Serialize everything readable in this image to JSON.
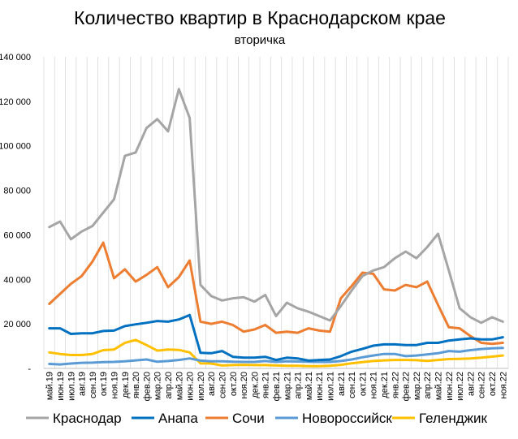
{
  "chart_data": {
    "type": "line",
    "title": "Количество квартир в Краснодарском крае",
    "subtitle": "вторичка",
    "xlabel": "",
    "ylabel": "",
    "ylim": [
      0,
      140000
    ],
    "yticks": [
      0,
      20000,
      40000,
      60000,
      80000,
      100000,
      120000,
      140000
    ],
    "ytick_labels": [
      "-",
      "20 000",
      "40 000",
      "60 000",
      "80 000",
      "100 000",
      "120 000",
      "140 000"
    ],
    "grid": "vertical",
    "legend_position": "bottom",
    "categories": [
      "май.19",
      "июн.19",
      "июл.19",
      "авг.19",
      "сен.19",
      "окт.19",
      "ноя.19",
      "дек.19",
      "янв.20",
      "фев.20",
      "мар.20",
      "апр.20",
      "май.20",
      "июн.20",
      "июл.20",
      "авг.20",
      "сен.20",
      "окт.20",
      "ноя.20",
      "дек.20",
      "янв.21",
      "фев.21",
      "мар.21",
      "апр.21",
      "май.21",
      "июн.21",
      "июл.21",
      "авг.21",
      "сен.21",
      "окт.21",
      "ноя.21",
      "дек.21",
      "янв.22",
      "фев.22",
      "мар.22",
      "апр.22",
      "май.22",
      "июн.22",
      "июл.22",
      "авг.22",
      "сен.22",
      "окт.22",
      "ноя.22"
    ],
    "tick_dates": [
      "май.19",
      "июн.19",
      "июл.19",
      "авг.19",
      "сен.19",
      "окт.19",
      "ноя.19",
      "дек.19",
      "янв.20",
      "фев.20",
      "мар.20",
      "апр.20",
      "май.20",
      "июн.20",
      "июл.20",
      "авг.20",
      "сен.20",
      "окт.20",
      "ноя.20",
      "дек.20",
      "янв.21",
      "фев.21",
      "мар.21",
      "апр.21",
      "май.21",
      "июн.21",
      "июл.21",
      "авг.21",
      "сен.21",
      "окт.21",
      "ноя.21",
      "дек.21",
      "янв.22",
      "фев.22",
      "мар.22",
      "апр.22",
      "май.22",
      "июн.22",
      "июл.22",
      "авг.22",
      "сен.22",
      "окт.22",
      "ноя.22"
    ],
    "series": [
      {
        "name": "Краснодар",
        "color": "#a5a5a5",
        "values": [
          63500,
          66000,
          58000,
          61500,
          64000,
          70000,
          76000,
          95500,
          97000,
          108000,
          112000,
          106500,
          125500,
          112500,
          37500,
          32500,
          30500,
          31500,
          32000,
          30000,
          33000,
          23500,
          29500,
          27000,
          25500,
          23500,
          21500,
          28000,
          35000,
          41500,
          44000,
          45500,
          49500,
          52500,
          49500,
          54500,
          60500,
          44000,
          27000,
          23000,
          20500,
          23000,
          21000
        ],
        "style": "solid"
      },
      {
        "name": "Анапа",
        "color": "#0070c0",
        "values": [
          18000,
          18000,
          15500,
          15800,
          15800,
          16800,
          17000,
          19000,
          19800,
          20500,
          21300,
          21000,
          22000,
          24000,
          7000,
          6800,
          7800,
          5200,
          4800,
          4800,
          5200,
          3800,
          4800,
          4500,
          3500,
          3800,
          4000,
          5500,
          7500,
          8800,
          10200,
          10800,
          10800,
          10500,
          10500,
          11500,
          11500,
          12500,
          13000,
          13500,
          13000,
          13000,
          14000
        ],
        "style": "solid"
      },
      {
        "name": "Сочи",
        "color": "#ed7d31",
        "values": [
          29000,
          33500,
          38000,
          41500,
          48000,
          56500,
          40500,
          44500,
          39000,
          42000,
          45500,
          36500,
          41000,
          48500,
          21000,
          20000,
          21000,
          19500,
          16500,
          17500,
          19500,
          16000,
          16500,
          16000,
          18000,
          17000,
          16500,
          31500,
          37000,
          43000,
          42500,
          35500,
          35000,
          37500,
          36500,
          39000,
          28500,
          18500,
          18000,
          14500,
          11500,
          11000,
          11500
        ],
        "style": "solid"
      },
      {
        "name": "Новороссийск",
        "color": "#5b9bd5",
        "values": [
          2000,
          1800,
          2200,
          2500,
          2600,
          2800,
          2900,
          3200,
          3600,
          4000,
          3000,
          3300,
          3800,
          4500,
          3500,
          3200,
          3200,
          3000,
          2900,
          2900,
          3300,
          2900,
          3200,
          3100,
          3000,
          2900,
          2900,
          3300,
          4000,
          5000,
          5800,
          6500,
          6500,
          5500,
          5800,
          6300,
          6800,
          7800,
          7500,
          8200,
          8700,
          9000,
          9200
        ],
        "style": "solid"
      },
      {
        "name": "Геленджик",
        "color": "#ffc000",
        "values": [
          7200,
          6500,
          6000,
          6000,
          6500,
          8200,
          8500,
          11500,
          12800,
          10500,
          8000,
          8500,
          8300,
          7200,
          2300,
          2200,
          1300,
          1500,
          1600,
          1500,
          1500,
          1300,
          1200,
          1200,
          1000,
          1000,
          1200,
          1600,
          2300,
          2800,
          3300,
          3600,
          3800,
          3800,
          3700,
          3400,
          3800,
          4200,
          4300,
          4500,
          4800,
          5300,
          5800
        ],
        "style": "solid"
      }
    ]
  }
}
